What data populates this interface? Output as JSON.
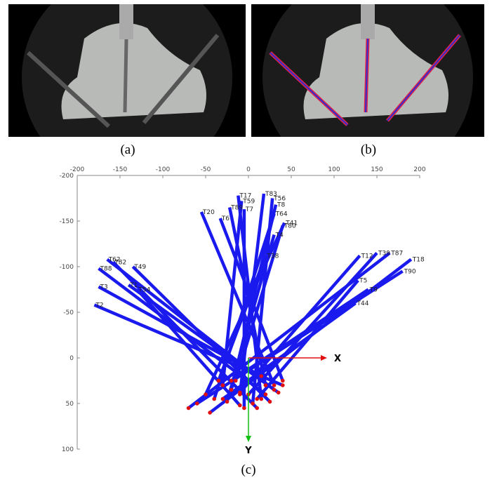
{
  "figure": {
    "captions": [
      "(a)",
      "(b)",
      "(c)"
    ],
    "plot": {
      "xlim": [
        -200,
        200
      ],
      "ylim": [
        -200,
        100
      ],
      "xticks": [
        -200,
        -150,
        -100,
        -50,
        0,
        50,
        100,
        150,
        200
      ],
      "yticks": [
        -200,
        -150,
        -100,
        -50,
        0,
        50,
        100
      ],
      "axis_labels": {
        "x": "X",
        "y": "Y"
      },
      "tools": [
        {
          "label": "T83",
          "head": [
            18,
            -180
          ],
          "tip": [
            -10,
            40
          ]
        },
        {
          "label": "T56",
          "head": [
            28,
            -175
          ],
          "tip": [
            5,
            50
          ]
        },
        {
          "label": "T8",
          "head": [
            32,
            -168
          ],
          "tip": [
            -20,
            35
          ]
        },
        {
          "label": "T17",
          "head": [
            -12,
            -178
          ],
          "tip": [
            15,
            45
          ]
        },
        {
          "label": "T59",
          "head": [
            -8,
            -172
          ],
          "tip": [
            -30,
            30
          ]
        },
        {
          "label": "T89",
          "head": [
            -22,
            -165
          ],
          "tip": [
            20,
            30
          ]
        },
        {
          "label": "T7",
          "head": [
            -5,
            -163
          ],
          "tip": [
            -5,
            55
          ]
        },
        {
          "label": "T64",
          "head": [
            30,
            -158
          ],
          "tip": [
            -40,
            45
          ]
        },
        {
          "label": "T20",
          "head": [
            -55,
            -160
          ],
          "tip": [
            30,
            30
          ]
        },
        {
          "label": "T6",
          "head": [
            -33,
            -153
          ],
          "tip": [
            40,
            25
          ]
        },
        {
          "label": "T41",
          "head": [
            42,
            -148
          ],
          "tip": [
            -50,
            40
          ]
        },
        {
          "label": "T80",
          "head": [
            40,
            -145
          ],
          "tip": [
            -15,
            25
          ]
        },
        {
          "label": "T4",
          "head": [
            30,
            -135
          ],
          "tip": [
            -25,
            48
          ]
        },
        {
          "label": "T38",
          "head": [
            20,
            -112
          ],
          "tip": [
            -35,
            25
          ]
        },
        {
          "label": "T12",
          "head": [
            130,
            -112
          ],
          "tip": [
            -10,
            38
          ]
        },
        {
          "label": "T87",
          "head": [
            165,
            -115
          ],
          "tip": [
            -70,
            55
          ]
        },
        {
          "label": "T18",
          "head": [
            190,
            -108
          ],
          "tip": [
            -45,
            60
          ]
        },
        {
          "label": "T90",
          "head": [
            180,
            -95
          ],
          "tip": [
            -60,
            50
          ]
        },
        {
          "label": "T39",
          "head": [
            150,
            -115
          ],
          "tip": [
            0,
            40
          ]
        },
        {
          "label": "T49",
          "head": [
            -135,
            -100
          ],
          "tip": [
            25,
            48
          ]
        },
        {
          "label": "T62",
          "head": [
            -165,
            -108
          ],
          "tip": [
            30,
            35
          ]
        },
        {
          "label": "T82",
          "head": [
            -158,
            -105
          ],
          "tip": [
            10,
            55
          ]
        },
        {
          "label": "T88",
          "head": [
            -175,
            -98
          ],
          "tip": [
            20,
            40
          ]
        },
        {
          "label": "T1",
          "head": [
            -140,
            -80
          ],
          "tip": [
            35,
            38
          ]
        },
        {
          "label": "T54",
          "head": [
            -130,
            -75
          ],
          "tip": [
            -10,
            52
          ]
        },
        {
          "label": "T2",
          "head": [
            -180,
            -58
          ],
          "tip": [
            40,
            30
          ]
        },
        {
          "label": "T44",
          "head": [
            125,
            -60
          ],
          "tip": [
            -30,
            45
          ]
        },
        {
          "label": "T9",
          "head": [
            140,
            -75
          ],
          "tip": [
            -20,
            25
          ]
        },
        {
          "label": "T3",
          "head": [
            -175,
            -78
          ],
          "tip": [
            15,
            20
          ]
        },
        {
          "label": "T5",
          "head": [
            128,
            -85
          ],
          "tip": [
            10,
            45
          ]
        }
      ]
    }
  }
}
